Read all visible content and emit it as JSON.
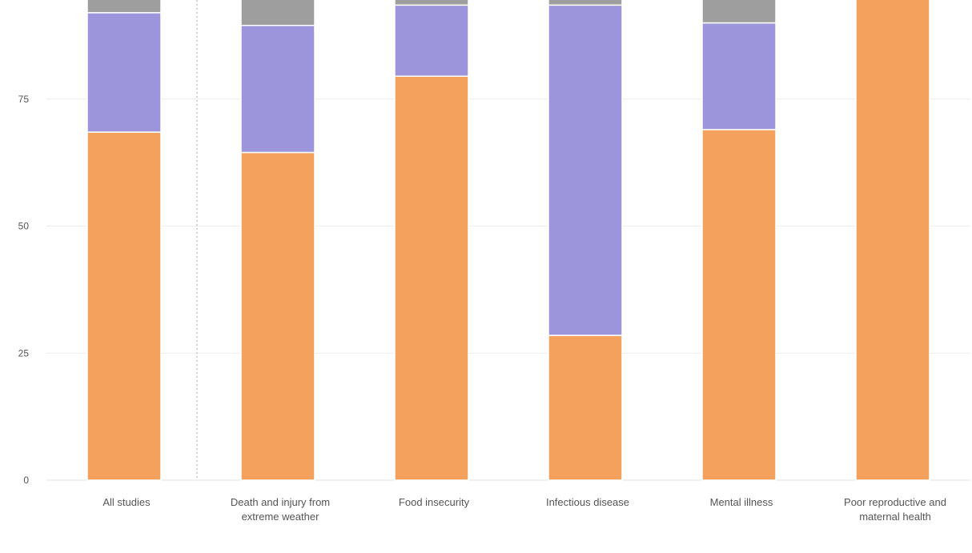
{
  "chart_data": {
    "type": "bar",
    "stacked": true,
    "title": "",
    "xlabel": "",
    "ylabel": "",
    "ylim": [
      0,
      94.5
    ],
    "yticks": [
      0,
      25,
      50,
      75
    ],
    "grid": true,
    "categories": [
      "All studies",
      "Death and injury from extreme weather",
      "Food insecurity",
      "Infectious disease",
      "Mental illness",
      "Poor reproductive and maternal health"
    ],
    "category_lines": [
      [
        "All studies"
      ],
      [
        "Death and injury from",
        "extreme weather"
      ],
      [
        "Food insecurity"
      ],
      [
        "Infectious disease"
      ],
      [
        "Mental illness"
      ],
      [
        "Poor reproductive and",
        "maternal health"
      ]
    ],
    "series": [
      {
        "values": [
          68.5,
          64.5,
          79.5,
          28.5,
          69.0,
          100
        ]
      },
      {
        "values": [
          23.5,
          25.0,
          14.0,
          65.0,
          21.0,
          0
        ]
      },
      {
        "values": [
          8.0,
          10.5,
          6.5,
          6.5,
          10.0,
          0
        ]
      }
    ],
    "divider_after_index": 0,
    "colors": {
      "series": [
        "#f3a15d",
        "#9d95dc",
        "#9e9e9e"
      ],
      "segment_separator": "#ffffff",
      "grid": "#ececec",
      "axis": "#e3e3e3",
      "tick_text": "#555555",
      "divider": "#c7c7c7"
    }
  }
}
